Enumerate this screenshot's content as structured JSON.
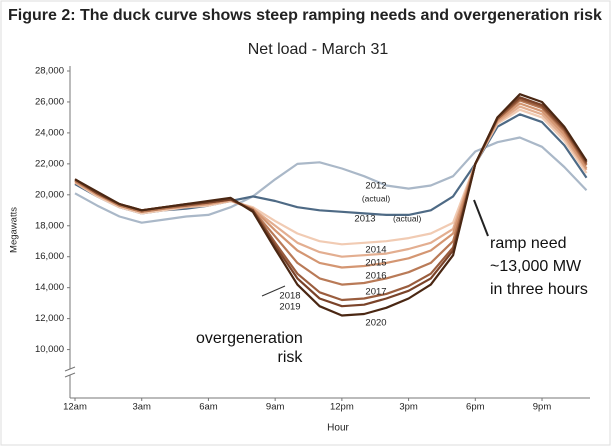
{
  "chart_data": {
    "type": "line",
    "figure_title": "Figure 2: The duck curve shows steep ramping needs and overgeneration risk",
    "title": "Net load - March 31",
    "y_label": "Megawatts",
    "x_label": "Hour",
    "x": [
      0,
      1,
      2,
      3,
      4,
      5,
      6,
      7,
      8,
      9,
      10,
      11,
      12,
      13,
      14,
      15,
      16,
      17,
      18,
      19,
      20,
      21,
      22,
      23
    ],
    "xlim": [
      0,
      23
    ],
    "xticks": [
      {
        "value": 0,
        "label": "12am"
      },
      {
        "value": 3,
        "label": "3am"
      },
      {
        "value": 6,
        "label": "6am"
      },
      {
        "value": 9,
        "label": "9am"
      },
      {
        "value": 12,
        "label": "12pm"
      },
      {
        "value": 15,
        "label": "3pm"
      },
      {
        "value": 18,
        "label": "6pm"
      },
      {
        "value": 21,
        "label": "9pm"
      }
    ],
    "ylim": [
      7000,
      28000
    ],
    "yticks": [
      {
        "value": 10000,
        "label": "10,000"
      },
      {
        "value": 12000,
        "label": "12,000"
      },
      {
        "value": 14000,
        "label": "14,000"
      },
      {
        "value": 16000,
        "label": "16,000"
      },
      {
        "value": 18000,
        "label": "18,000"
      },
      {
        "value": 20000,
        "label": "20,000"
      },
      {
        "value": 22000,
        "label": "22,000"
      },
      {
        "value": 24000,
        "label": "24,000"
      },
      {
        "value": 26000,
        "label": "26,000"
      },
      {
        "value": 28000,
        "label": "28,000"
      }
    ],
    "series": [
      {
        "name": "2012",
        "note": "(actual)",
        "color": "#aab8c8",
        "values": [
          20100,
          19300,
          18600,
          18200,
          18400,
          18600,
          18700,
          19200,
          19900,
          21000,
          22000,
          22100,
          21700,
          21200,
          20600,
          20400,
          20600,
          21200,
          22800,
          23400,
          23700,
          23100,
          21800,
          20300
        ]
      },
      {
        "name": "2013",
        "note": "(actual)",
        "color": "#4e6a85",
        "values": [
          20700,
          19900,
          19200,
          18800,
          19000,
          19100,
          19300,
          19600,
          19900,
          19600,
          19200,
          19000,
          18900,
          18800,
          18700,
          18700,
          19000,
          19900,
          22000,
          24400,
          25200,
          24700,
          23200,
          21100
        ]
      },
      {
        "name": "2014",
        "color": "#f1cbb3",
        "values": [
          20800,
          19900,
          19200,
          18800,
          19000,
          19200,
          19300,
          19600,
          19200,
          18300,
          17500,
          17000,
          16800,
          16900,
          17000,
          17200,
          17500,
          18200,
          22000,
          24600,
          25500,
          25000,
          23500,
          21400
        ]
      },
      {
        "name": "2015",
        "color": "#e3ae90",
        "values": [
          20800,
          20000,
          19300,
          18900,
          19100,
          19200,
          19400,
          19600,
          19100,
          18000,
          16900,
          16300,
          16000,
          16100,
          16200,
          16500,
          16900,
          17800,
          22000,
          24700,
          25700,
          25200,
          23700,
          21600
        ]
      },
      {
        "name": "2016",
        "color": "#d49672",
        "values": [
          20900,
          20000,
          19300,
          18900,
          19100,
          19300,
          19400,
          19700,
          19100,
          17700,
          16400,
          15600,
          15300,
          15400,
          15600,
          15900,
          16400,
          17500,
          22000,
          24800,
          25900,
          25400,
          23900,
          21700
        ]
      },
      {
        "name": "2017",
        "color": "#b97a57",
        "values": [
          20900,
          20100,
          19300,
          18900,
          19100,
          19300,
          19500,
          19700,
          19000,
          17300,
          15600,
          14600,
          14200,
          14300,
          14600,
          15000,
          15600,
          17000,
          22000,
          24900,
          26100,
          25600,
          24100,
          21900
        ]
      },
      {
        "name": "2018",
        "color": "#9a5d3e",
        "values": [
          21000,
          20100,
          19400,
          19000,
          19200,
          19300,
          19500,
          19700,
          19000,
          16900,
          14900,
          13700,
          13200,
          13300,
          13600,
          14100,
          14900,
          16600,
          22000,
          24900,
          26200,
          25700,
          24200,
          22000
        ]
      },
      {
        "name": "2019",
        "color": "#7a4329",
        "values": [
          21000,
          20100,
          19400,
          19000,
          19200,
          19400,
          19500,
          19700,
          19000,
          16700,
          14600,
          13300,
          12800,
          12900,
          13300,
          13800,
          14600,
          16400,
          22000,
          25000,
          26300,
          25800,
          24300,
          22100
        ]
      },
      {
        "name": "2020",
        "color": "#4a2713",
        "values": [
          21000,
          20200,
          19400,
          19000,
          19200,
          19400,
          19600,
          19800,
          18900,
          16500,
          14200,
          12800,
          12200,
          12300,
          12700,
          13300,
          14200,
          16100,
          22000,
          25000,
          26500,
          26000,
          24400,
          22200
        ]
      }
    ],
    "annotations": [
      {
        "lines": [
          "overgeneration",
          "risk"
        ]
      },
      {
        "lines": [
          "ramp need",
          "~13,000 MW",
          "in three hours"
        ]
      }
    ]
  }
}
